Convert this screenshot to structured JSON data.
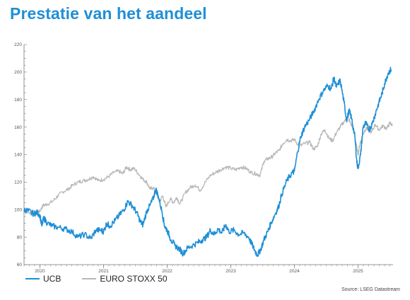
{
  "page": {
    "title": "Prestatie van het aandeel",
    "source": "Source: LSEG Datastream"
  },
  "colors": {
    "accent": "#1f8fd6",
    "ucb": "#1f8fd6",
    "stoxx": "#b8b8b8"
  },
  "chart_data": {
    "type": "line",
    "title": "",
    "xlabel": "",
    "ylabel": "",
    "ylim": [
      60,
      220
    ],
    "xlim": [
      2019.75,
      2025.55
    ],
    "y_ticks": [
      60,
      80,
      100,
      120,
      140,
      160,
      180,
      200,
      220
    ],
    "x_ticks": [
      "2020",
      "2021",
      "2022",
      "2023",
      "2024",
      "2025"
    ],
    "x_tick_values": [
      2020.0,
      2021.0,
      2022.0,
      2023.0,
      2024.0,
      2025.0
    ],
    "grid": false,
    "legend_position": "bottom-left",
    "series": [
      {
        "name": "UCB",
        "color": "#1f8fd6",
        "points": [
          [
            2019.75,
            100
          ],
          [
            2019.82,
            99
          ],
          [
            2019.9,
            97
          ],
          [
            2019.95,
            98
          ],
          [
            2020.0,
            96
          ],
          [
            2020.03,
            88
          ],
          [
            2020.06,
            94
          ],
          [
            2020.12,
            90
          ],
          [
            2020.2,
            88
          ],
          [
            2020.3,
            87
          ],
          [
            2020.4,
            86
          ],
          [
            2020.5,
            84
          ],
          [
            2020.6,
            80
          ],
          [
            2020.7,
            82
          ],
          [
            2020.8,
            79
          ],
          [
            2020.88,
            85
          ],
          [
            2020.96,
            85
          ],
          [
            2021.0,
            84
          ],
          [
            2021.05,
            90
          ],
          [
            2021.1,
            88
          ],
          [
            2021.18,
            92
          ],
          [
            2021.25,
            96
          ],
          [
            2021.32,
            100
          ],
          [
            2021.38,
            106
          ],
          [
            2021.45,
            103
          ],
          [
            2021.52,
            98
          ],
          [
            2021.58,
            91
          ],
          [
            2021.62,
            89
          ],
          [
            2021.68,
            99
          ],
          [
            2021.73,
            103
          ],
          [
            2021.78,
            108
          ],
          [
            2021.82,
            115
          ],
          [
            2021.86,
            110
          ],
          [
            2021.92,
            98
          ],
          [
            2021.96,
            88
          ],
          [
            2022.0,
            85
          ],
          [
            2022.06,
            78
          ],
          [
            2022.12,
            74
          ],
          [
            2022.2,
            71
          ],
          [
            2022.25,
            68
          ],
          [
            2022.32,
            72
          ],
          [
            2022.4,
            74
          ],
          [
            2022.48,
            76
          ],
          [
            2022.55,
            78
          ],
          [
            2022.62,
            80
          ],
          [
            2022.68,
            85
          ],
          [
            2022.74,
            82
          ],
          [
            2022.8,
            86
          ],
          [
            2022.86,
            83
          ],
          [
            2022.92,
            89
          ],
          [
            2022.97,
            84
          ],
          [
            2023.05,
            85
          ],
          [
            2023.12,
            82
          ],
          [
            2023.2,
            83
          ],
          [
            2023.28,
            80
          ],
          [
            2023.33,
            75
          ],
          [
            2023.38,
            70
          ],
          [
            2023.42,
            67
          ],
          [
            2023.47,
            71
          ],
          [
            2023.52,
            78
          ],
          [
            2023.58,
            84
          ],
          [
            2023.63,
            90
          ],
          [
            2023.7,
            97
          ],
          [
            2023.75,
            102
          ],
          [
            2023.8,
            111
          ],
          [
            2023.88,
            121
          ],
          [
            2023.95,
            126
          ],
          [
            2024.0,
            128
          ],
          [
            2024.05,
            142
          ],
          [
            2024.1,
            153
          ],
          [
            2024.16,
            160
          ],
          [
            2024.23,
            165
          ],
          [
            2024.3,
            171
          ],
          [
            2024.38,
            180
          ],
          [
            2024.45,
            186
          ],
          [
            2024.52,
            190
          ],
          [
            2024.58,
            188
          ],
          [
            2024.62,
            196
          ],
          [
            2024.66,
            189
          ],
          [
            2024.72,
            194
          ],
          [
            2024.78,
            178
          ],
          [
            2024.82,
            165
          ],
          [
            2024.86,
            172
          ],
          [
            2024.9,
            166
          ],
          [
            2024.95,
            153
          ],
          [
            2024.98,
            135
          ],
          [
            2025.0,
            130
          ],
          [
            2025.04,
            140
          ],
          [
            2025.08,
            160
          ],
          [
            2025.12,
            163
          ],
          [
            2025.17,
            158
          ],
          [
            2025.22,
            162
          ],
          [
            2025.28,
            171
          ],
          [
            2025.33,
            178
          ],
          [
            2025.38,
            185
          ],
          [
            2025.42,
            192
          ],
          [
            2025.47,
            199
          ],
          [
            2025.52,
            202
          ]
        ]
      },
      {
        "name": "EURO STOXX 50",
        "color": "#b8b8b8",
        "points": [
          [
            2019.75,
            100
          ],
          [
            2019.82,
            98
          ],
          [
            2019.9,
            96
          ],
          [
            2019.95,
            97
          ],
          [
            2020.0,
            99
          ],
          [
            2020.05,
            103
          ],
          [
            2020.12,
            104
          ],
          [
            2020.2,
            106
          ],
          [
            2020.28,
            110
          ],
          [
            2020.36,
            113
          ],
          [
            2020.45,
            115
          ],
          [
            2020.52,
            118
          ],
          [
            2020.6,
            120
          ],
          [
            2020.68,
            121
          ],
          [
            2020.76,
            122
          ],
          [
            2020.84,
            124
          ],
          [
            2020.92,
            121
          ],
          [
            2021.0,
            122
          ],
          [
            2021.08,
            124
          ],
          [
            2021.16,
            127
          ],
          [
            2021.24,
            128
          ],
          [
            2021.3,
            126
          ],
          [
            2021.36,
            131
          ],
          [
            2021.42,
            129
          ],
          [
            2021.48,
            130
          ],
          [
            2021.55,
            126
          ],
          [
            2021.62,
            122
          ],
          [
            2021.68,
            120
          ],
          [
            2021.73,
            115
          ],
          [
            2021.78,
            116
          ],
          [
            2021.83,
            112
          ],
          [
            2021.88,
            106
          ],
          [
            2021.93,
            110
          ],
          [
            2021.98,
            102
          ],
          [
            2022.05,
            108
          ],
          [
            2022.1,
            105
          ],
          [
            2022.15,
            109
          ],
          [
            2022.2,
            104
          ],
          [
            2022.28,
            112
          ],
          [
            2022.36,
            116
          ],
          [
            2022.44,
            118
          ],
          [
            2022.52,
            114
          ],
          [
            2022.6,
            120
          ],
          [
            2022.68,
            125
          ],
          [
            2022.76,
            127
          ],
          [
            2022.84,
            129
          ],
          [
            2022.92,
            131
          ],
          [
            2023.0,
            130
          ],
          [
            2023.08,
            129
          ],
          [
            2023.16,
            131
          ],
          [
            2023.24,
            130
          ],
          [
            2023.32,
            127
          ],
          [
            2023.4,
            126
          ],
          [
            2023.46,
            125
          ],
          [
            2023.52,
            135
          ],
          [
            2023.58,
            137
          ],
          [
            2023.64,
            138
          ],
          [
            2023.7,
            141
          ],
          [
            2023.76,
            143
          ],
          [
            2023.82,
            148
          ],
          [
            2023.88,
            151
          ],
          [
            2023.94,
            150
          ],
          [
            2024.0,
            151
          ],
          [
            2024.08,
            146
          ],
          [
            2024.16,
            148
          ],
          [
            2024.24,
            149
          ],
          [
            2024.3,
            144
          ],
          [
            2024.36,
            146
          ],
          [
            2024.42,
            155
          ],
          [
            2024.48,
            158
          ],
          [
            2024.54,
            152
          ],
          [
            2024.6,
            150
          ],
          [
            2024.66,
            156
          ],
          [
            2024.72,
            160
          ],
          [
            2024.78,
            164
          ],
          [
            2024.84,
            167
          ],
          [
            2024.88,
            163
          ],
          [
            2024.93,
            158
          ],
          [
            2024.97,
            148
          ],
          [
            2025.0,
            140
          ],
          [
            2025.03,
            148
          ],
          [
            2025.07,
            154
          ],
          [
            2025.11,
            158
          ],
          [
            2025.16,
            160
          ],
          [
            2025.21,
            156
          ],
          [
            2025.27,
            162
          ],
          [
            2025.33,
            158
          ],
          [
            2025.39,
            161
          ],
          [
            2025.45,
            159
          ],
          [
            2025.5,
            163
          ],
          [
            2025.54,
            161
          ]
        ]
      }
    ]
  }
}
